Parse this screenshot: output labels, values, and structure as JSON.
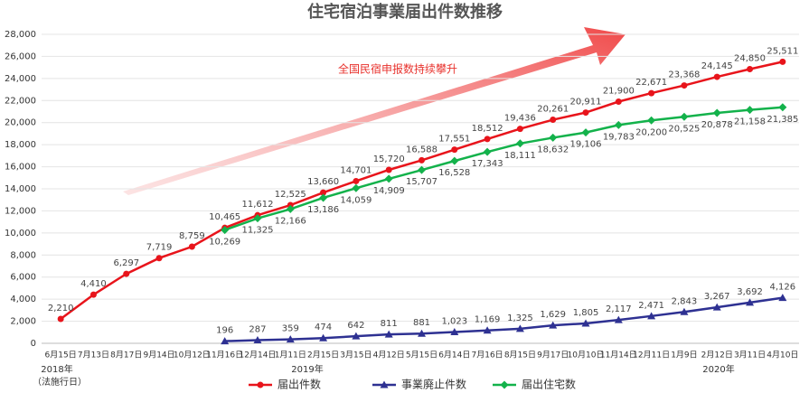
{
  "chart_data": {
    "type": "line",
    "title": "住宅宿泊事業届出件数推移",
    "annotation": "全国民宿申报数持续攀升",
    "year_labels": [
      "2018年",
      "（法施行日）",
      "2019年",
      "2020年"
    ],
    "categories": [
      "6月15日",
      "7月13日",
      "8月17日",
      "9月14日",
      "10月12日",
      "11月16日",
      "12月14日",
      "1月11日",
      "2月15日",
      "3月15日",
      "4月12日",
      "5月15日",
      "6月14日",
      "7月16日",
      "8月15日",
      "9月17日",
      "10月10日",
      "11月14日",
      "12月11日",
      "1月9日",
      "2月12日",
      "3月11日",
      "4月10日"
    ],
    "series": [
      {
        "name": "届出件数",
        "color": "#e8141b",
        "marker": "circle",
        "values": [
          2210,
          4410,
          6297,
          7719,
          8759,
          10465,
          11612,
          12525,
          13660,
          14701,
          15720,
          16588,
          17551,
          18512,
          19436,
          20261,
          20911,
          21900,
          22671,
          23368,
          24145,
          24850,
          25511
        ],
        "value_labels": [
          "2,210",
          "4,410",
          "6,297",
          "7,719",
          "8,759",
          "10,465",
          "11,612",
          "12,525",
          "13,660",
          "14,701",
          "15,720",
          "16,588",
          "17,551",
          "18,512",
          "19,436",
          "20,261",
          "20,911",
          "21,900",
          "22,671",
          "23,368",
          "24,145",
          "24,850",
          "25,511"
        ]
      },
      {
        "name": "事業廃止件数",
        "color": "#2e3192",
        "marker": "triangle",
        "values": [
          null,
          null,
          null,
          null,
          null,
          196,
          287,
          359,
          474,
          642,
          811,
          881,
          1023,
          1169,
          1325,
          1629,
          1805,
          2117,
          2471,
          2843,
          3267,
          3692,
          4126
        ],
        "value_labels": [
          null,
          null,
          null,
          null,
          null,
          "196",
          "287",
          "359",
          "474",
          "642",
          "811",
          "881",
          "1,023",
          "1,169",
          "1,325",
          "1,629",
          "1,805",
          "2,117",
          "2,471",
          "2,843",
          "3,267",
          "3,692",
          "4,126"
        ]
      },
      {
        "name": "届出住宅数",
        "color": "#13b24b",
        "marker": "diamond",
        "values": [
          null,
          null,
          null,
          null,
          null,
          10269,
          11325,
          12166,
          13186,
          14059,
          14909,
          15707,
          16528,
          17343,
          18111,
          18632,
          19106,
          19783,
          20200,
          20525,
          20878,
          21158,
          21385
        ],
        "value_labels": [
          null,
          null,
          null,
          null,
          null,
          "10,269",
          "11,325",
          "12,166",
          "13,186",
          "14,059",
          "14,909",
          "15,707",
          "16,528",
          "17,343",
          "18,111",
          "18,632",
          "19,106",
          "19,783",
          "20,200",
          "20,525",
          "20,878",
          "21,158",
          "21,385"
        ]
      }
    ],
    "ylim": [
      0,
      28000
    ],
    "yticks": [
      0,
      {
        "value": 2000,
        "label": "2,000"
      },
      {
        "value": 4000,
        "label": "4,000"
      },
      {
        "value": 6000,
        "label": "6,000"
      },
      {
        "value": 8000,
        "label": "8,000"
      },
      {
        "value": 10000,
        "label": "10,000"
      },
      {
        "value": 12000,
        "label": "12,000"
      },
      {
        "value": 14000,
        "label": "14,000"
      },
      {
        "value": 16000,
        "label": "16,000"
      },
      {
        "value": 18000,
        "label": "18,000"
      },
      {
        "value": 20000,
        "label": "20,000"
      },
      {
        "value": 22000,
        "label": "22,000"
      },
      {
        "value": 24000,
        "label": "24,000"
      },
      {
        "value": 26000,
        "label": "26,000"
      },
      {
        "value": 28000,
        "label": "28,000"
      }
    ],
    "grid": true
  }
}
